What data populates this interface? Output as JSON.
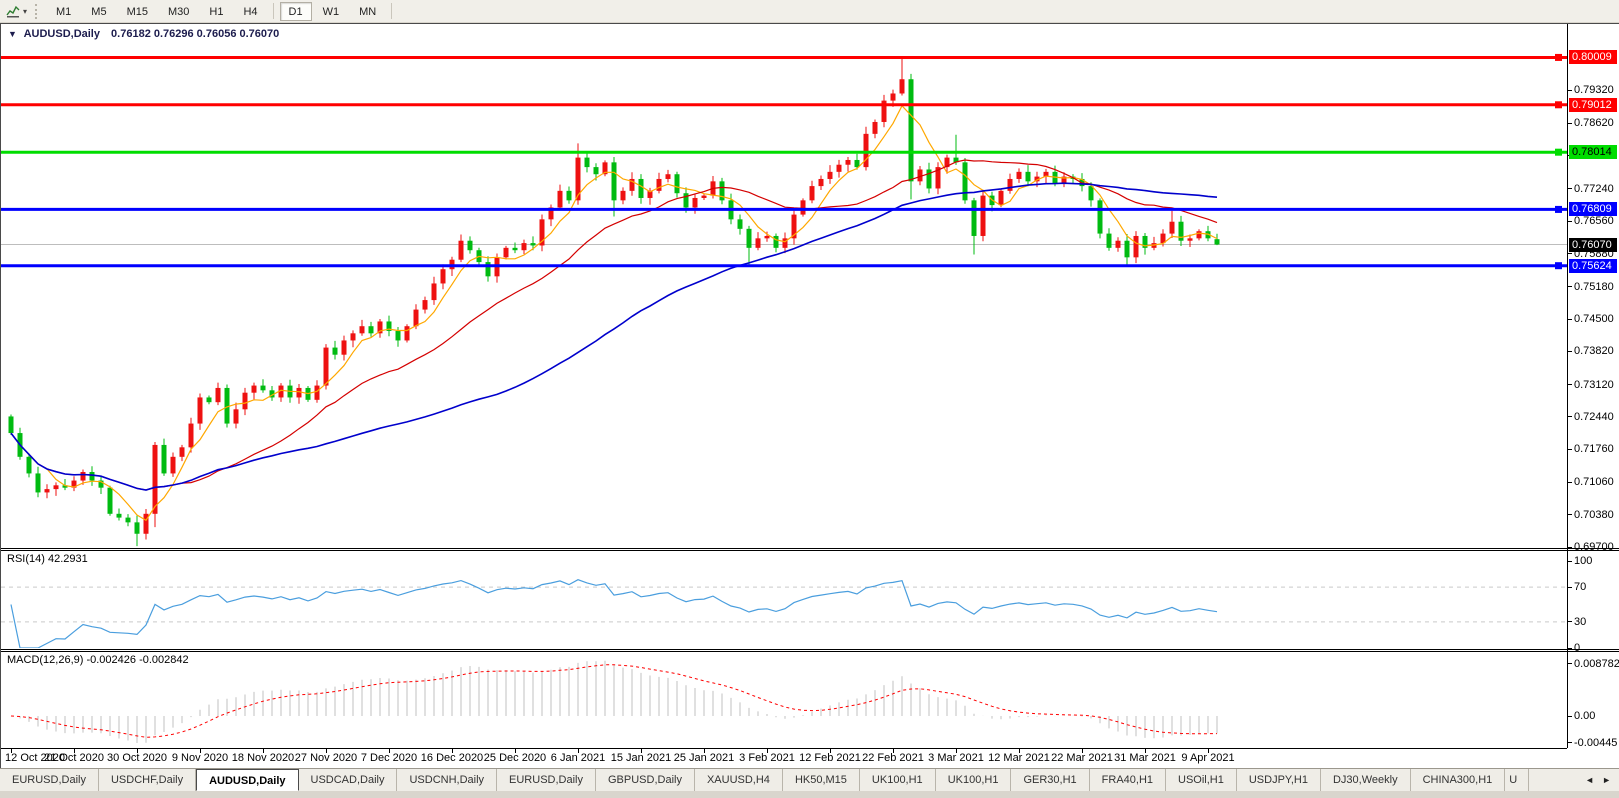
{
  "toolbar": {
    "indicator_tool": "chart-tool",
    "timeframes": [
      "M1",
      "M5",
      "M15",
      "M30",
      "H1",
      "H4",
      "D1",
      "W1",
      "MN"
    ],
    "active_timeframe": "D1"
  },
  "chart": {
    "title_marker": "▼",
    "symbol_period": "AUDUSD,Daily",
    "ohlc_text": "0.76182 0.76296 0.76056 0.76070"
  },
  "chart_data": {
    "type": "candlestick",
    "symbol": "AUDUSD",
    "period": "Daily",
    "x_labels": [
      "12 Oct 2020",
      "21 Oct 2020",
      "30 Oct 2020",
      "9 Nov 2020",
      "18 Nov 2020",
      "27 Nov 2020",
      "7 Dec 2020",
      "16 Dec 2020",
      "25 Dec 2020",
      "6 Jan 2021",
      "15 Jan 2021",
      "25 Jan 2021",
      "3 Feb 2021",
      "12 Feb 2021",
      "22 Feb 2021",
      "3 Mar 2021",
      "12 Mar 2021",
      "22 Mar 2021",
      "31 Mar 2021",
      "9 Apr 2021"
    ],
    "bars_per_label": 7,
    "open_first": 0.7245,
    "closes": [
      0.721,
      0.716,
      0.7125,
      0.7085,
      0.7092,
      0.71,
      0.7095,
      0.711,
      0.7128,
      0.711,
      0.7095,
      0.704,
      0.7032,
      0.7022,
      0.6998,
      0.704,
      0.7185,
      0.7125,
      0.716,
      0.718,
      0.723,
      0.7285,
      0.7275,
      0.7305,
      0.723,
      0.726,
      0.7295,
      0.731,
      0.73,
      0.7285,
      0.731,
      0.7285,
      0.7305,
      0.728,
      0.731,
      0.739,
      0.7375,
      0.7405,
      0.742,
      0.7435,
      0.742,
      0.7445,
      0.7425,
      0.7405,
      0.7435,
      0.747,
      0.749,
      0.7525,
      0.7555,
      0.7575,
      0.7615,
      0.7595,
      0.757,
      0.754,
      0.758,
      0.76,
      0.7595,
      0.761,
      0.7605,
      0.766,
      0.7685,
      0.772,
      0.77,
      0.779,
      0.777,
      0.7755,
      0.778,
      0.77,
      0.772,
      0.7745,
      0.7705,
      0.772,
      0.7745,
      0.7755,
      0.7715,
      0.7685,
      0.7705,
      0.771,
      0.774,
      0.77,
      0.766,
      0.764,
      0.76,
      0.762,
      0.7625,
      0.76,
      0.762,
      0.767,
      0.77,
      0.773,
      0.7745,
      0.776,
      0.7775,
      0.7785,
      0.777,
      0.784,
      0.7865,
      0.791,
      0.7925,
      0.7955,
      0.774,
      0.7765,
      0.7725,
      0.777,
      0.779,
      0.778,
      0.77,
      0.7625,
      0.771,
      0.769,
      0.772,
      0.7745,
      0.776,
      0.774,
      0.775,
      0.776,
      0.7735,
      0.775,
      0.7745,
      0.773,
      0.77,
      0.763,
      0.76,
      0.7615,
      0.758,
      0.7625,
      0.76,
      0.761,
      0.763,
      0.7655,
      0.7615,
      0.762,
      0.7635,
      0.762,
      0.7607
    ],
    "default_wick": 0.0012,
    "wick_overrides": {
      "14": {
        "l": 0.6972
      },
      "16": {
        "l": 0.7012
      },
      "63": {
        "h": 0.782
      },
      "67": {
        "l": 0.7666
      },
      "82": {
        "l": 0.7564
      },
      "95": {
        "h": 0.7855
      },
      "99": {
        "h": 0.8001
      },
      "100": {
        "l": 0.7702
      },
      "105": {
        "h": 0.7838
      },
      "107": {
        "l": 0.7586
      },
      "121": {
        "l": 0.762
      },
      "124": {
        "l": 0.7562
      },
      "129": {
        "h": 0.7678
      },
      "134": {
        "o": 0.76182,
        "h": 0.76296,
        "l": 0.76056,
        "c": 0.7607
      }
    },
    "ylim": [
      0.6968,
      0.80692
    ],
    "y_ticks": [
      "0.79320",
      "0.78620",
      "0.77940",
      "0.77240",
      "0.76560",
      "0.75880",
      "0.75180",
      "0.74500",
      "0.73820",
      "0.73120",
      "0.72440",
      "0.71760",
      "0.71060",
      "0.70380",
      "0.69700"
    ],
    "levels": [
      {
        "value": 0.80009,
        "label": "0.80009",
        "color": "#ff0000",
        "text": "#ffffff"
      },
      {
        "value": 0.79012,
        "label": "0.79012",
        "color": "#ff0000",
        "text": "#ffffff"
      },
      {
        "value": 0.78014,
        "label": "0.78014",
        "color": "#00dd00",
        "text": "#000000"
      },
      {
        "value": 0.76809,
        "label": "0.76809",
        "color": "#0000ff",
        "text": "#ffffff"
      },
      {
        "value": 0.75624,
        "label": "0.75624",
        "color": "#0000ff",
        "text": "#ffffff"
      }
    ],
    "bid": {
      "value": 0.7607,
      "label": "0.76070",
      "badge": "#000000",
      "text": "#ffffff",
      "line": "#bdbdbd"
    },
    "moving_averages": [
      {
        "name": "fast",
        "window": 5,
        "color": "#ffa800"
      },
      {
        "name": "mid",
        "window": 20,
        "color": "#d40000"
      },
      {
        "name": "slow",
        "window": 55,
        "color": "#0000cc"
      }
    ],
    "bull_color": "#ee1111",
    "bear_color": "#00bb11"
  },
  "rsi": {
    "label": "RSI(14) 42.2931",
    "period": 14,
    "value": 42.2931,
    "axis_labels": [
      {
        "v": 100,
        "t": "100"
      },
      {
        "v": 70,
        "t": "70"
      },
      {
        "v": 30,
        "t": "30"
      },
      {
        "v": 0,
        "t": "0"
      }
    ],
    "upper": 70,
    "lower": 30,
    "line_color": "#4a9ede",
    "level_color": "#c9c9c9"
  },
  "macd": {
    "label": "MACD(12,26,9) -0.002426 -0.002842",
    "fast": 12,
    "slow": 26,
    "signal": 9,
    "main_value": -0.002426,
    "signal_value": -0.002842,
    "axis_labels": [
      {
        "v": 0.008782,
        "t": "0.008782"
      },
      {
        "v": 0,
        "t": "0.00"
      },
      {
        "v": -0.00445,
        "t": "-0.00445"
      }
    ],
    "hist_color": "#c0c0c0",
    "signal_color": "#ff0000"
  },
  "tabs": {
    "items": [
      "EURUSD,Daily",
      "USDCHF,Daily",
      "AUDUSD,Daily",
      "USDCAD,Daily",
      "USDCNH,Daily",
      "EURUSD,Daily",
      "GBPUSD,Daily",
      "XAUUSD,H4",
      "HK50,M15",
      "UK100,H1",
      "UK100,H1",
      "GER30,H1",
      "FRA40,H1",
      "USOil,H1",
      "USDJPY,H1",
      "DJ30,Weekly",
      "CHINA300,H1",
      "U"
    ],
    "active_index": 2,
    "scroll_left": "◄",
    "scroll_right": "►"
  }
}
